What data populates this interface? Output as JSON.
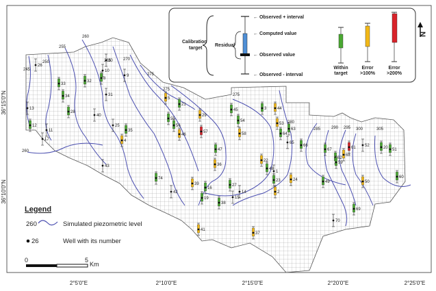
{
  "axes": {
    "x_ticks": [
      "2°5'0\"E",
      "2°10'0\"E",
      "2°15'0\"E",
      "2°20'0\"E",
      "2°25'0\"E"
    ],
    "y_ticks": [
      "36°15'0\"N",
      "36°10'0\"N"
    ]
  },
  "north_arrow": "N",
  "calibration_box": {
    "target_title": "Calibration target",
    "residual": "Residual",
    "observed_plus": "Observed + interval",
    "computed": "Computed value",
    "observed": "Observed value",
    "observed_minus": "Observed - interval",
    "within": "Within target",
    "err100": "Error >100%",
    "err200": "Error >200%",
    "colors": {
      "within": "#4aa832",
      "err100": "#f2b817",
      "err200": "#d8232a",
      "blue": "#4f8fd6"
    }
  },
  "legend": {
    "title": "Legend",
    "contour_value": "260",
    "contour_label": "Simulated piezometric level",
    "well_value": "26",
    "well_label": "Well with its number"
  },
  "scale": {
    "start": "0",
    "end": "5",
    "unit": "Km"
  },
  "contours": [
    "245",
    "250",
    "255",
    "260",
    "265",
    "270",
    "275",
    "260",
    "275",
    "275",
    "280",
    "285",
    "290",
    "295",
    "300",
    "305"
  ],
  "wells": [
    {
      "id": "26",
      "status": "none"
    },
    {
      "id": "33",
      "status": "within"
    },
    {
      "id": "34",
      "status": "within"
    },
    {
      "id": "13",
      "status": "none"
    },
    {
      "id": "28",
      "status": "within"
    },
    {
      "id": "12",
      "status": "within"
    },
    {
      "id": "11",
      "status": "none"
    },
    {
      "id": "17",
      "status": "none"
    },
    {
      "id": "30",
      "status": "none"
    },
    {
      "id": "10",
      "status": "none"
    },
    {
      "id": "8",
      "status": "within"
    },
    {
      "id": "31",
      "status": "none"
    },
    {
      "id": "32",
      "status": "within"
    },
    {
      "id": "9",
      "status": "none"
    },
    {
      "id": "40",
      "status": "none"
    },
    {
      "id": "25",
      "status": "none"
    },
    {
      "id": "35",
      "status": "within"
    },
    {
      "id": "4",
      "status": "err100"
    },
    {
      "id": "43",
      "status": "none"
    },
    {
      "id": "5",
      "status": "err100"
    },
    {
      "id": "21",
      "status": "within"
    },
    {
      "id": "55",
      "status": "within"
    },
    {
      "id": "56",
      "status": "within"
    },
    {
      "id": "46",
      "status": "err100"
    },
    {
      "id": "29",
      "status": "err100"
    },
    {
      "id": "57",
      "status": "err200"
    },
    {
      "id": "47",
      "status": "within"
    },
    {
      "id": "36",
      "status": "err100"
    },
    {
      "id": "74",
      "status": "within"
    },
    {
      "id": "42",
      "status": "none"
    },
    {
      "id": "39",
      "status": "err100"
    },
    {
      "id": "16",
      "status": "within"
    },
    {
      "id": "19",
      "status": "within"
    },
    {
      "id": "41",
      "status": "err100"
    },
    {
      "id": "45",
      "status": "within"
    },
    {
      "id": "54",
      "status": "within"
    },
    {
      "id": "58",
      "status": "err100"
    },
    {
      "id": "3",
      "status": "within"
    },
    {
      "id": "44",
      "status": "err100"
    },
    {
      "id": "53",
      "status": "err100"
    },
    {
      "id": "63",
      "status": "within"
    },
    {
      "id": "64",
      "status": "within"
    },
    {
      "id": "65",
      "status": "none"
    },
    {
      "id": "22",
      "status": "err100"
    },
    {
      "id": "48",
      "status": "within"
    },
    {
      "id": "1",
      "status": "none"
    },
    {
      "id": "23",
      "status": "within"
    },
    {
      "id": "24",
      "status": "err100"
    },
    {
      "id": "2",
      "status": "err100"
    },
    {
      "id": "27",
      "status": "within"
    },
    {
      "id": "14",
      "status": "none"
    },
    {
      "id": "15",
      "status": "none"
    },
    {
      "id": "38",
      "status": "within"
    },
    {
      "id": "37",
      "status": "err100"
    },
    {
      "id": "66",
      "status": "within"
    },
    {
      "id": "67",
      "status": "within"
    },
    {
      "id": "68",
      "status": "err100"
    },
    {
      "id": "62",
      "status": "within"
    },
    {
      "id": "61",
      "status": "err200"
    },
    {
      "id": "59",
      "status": "within"
    },
    {
      "id": "49",
      "status": "within"
    },
    {
      "id": "52",
      "status": "none"
    },
    {
      "id": "20",
      "status": "within"
    },
    {
      "id": "51",
      "status": "within"
    },
    {
      "id": "50",
      "status": "err100"
    },
    {
      "id": "60",
      "status": "within"
    },
    {
      "id": "69",
      "status": "within"
    },
    {
      "id": "70",
      "status": "none"
    }
  ]
}
